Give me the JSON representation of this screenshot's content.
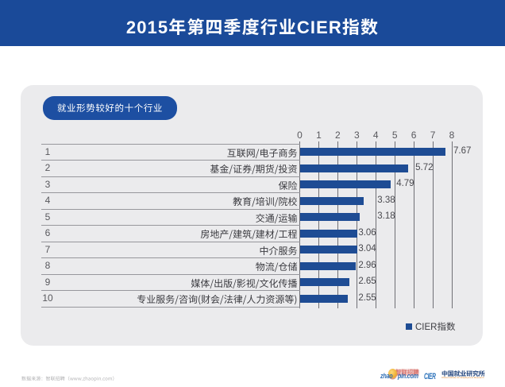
{
  "banner": {
    "title": "2015年第四季度行业CIER指数"
  },
  "panel": {
    "tag_label": "就业形势较好的十个行业"
  },
  "chart_data": {
    "type": "bar",
    "orientation": "horizontal",
    "title": "2015年第四季度行业CIER指数",
    "subtitle": "就业形势较好的十个行业",
    "ranks": [
      "1",
      "2",
      "3",
      "4",
      "5",
      "6",
      "7",
      "8",
      "9",
      "10"
    ],
    "categories": [
      "互联网/电子商务",
      "基金/证券/期货/投资",
      "保险",
      "教育/培训/院校",
      "交通/运输",
      "房地产/建筑/建材/工程",
      "中介服务",
      "物流/仓储",
      "媒体/出版/影视/文化传播",
      "专业服务/咨询(财会/法律/人力资源等)"
    ],
    "values": [
      7.67,
      5.72,
      4.79,
      3.38,
      3.18,
      3.06,
      3.04,
      2.96,
      2.65,
      2.55
    ],
    "series": [
      {
        "name": "CIER指数",
        "values": [
          7.67,
          5.72,
          4.79,
          3.38,
          3.18,
          3.06,
          3.04,
          2.96,
          2.65,
          2.55
        ]
      }
    ],
    "xlabel": "",
    "ylabel": "",
    "xlim": [
      0,
      8
    ],
    "x_ticks": [
      0,
      1,
      2,
      3,
      4,
      5,
      6,
      7,
      8
    ],
    "grid": true,
    "legend_position": "bottom-right",
    "legend_label": "CIER指数",
    "bar_color": "#1e4c94"
  },
  "legend": {
    "label": "CIER指数"
  },
  "footer": {
    "source_note": "数据来源：智联招聘（www.zhaopin.com）",
    "zhaopin_logo": {
      "cn": "智联招聘",
      "en_prefix": "zhao",
      "en_suffix": "pin.com"
    },
    "cier_logo": {
      "abbr": "CIER",
      "cn": "中国就业研究所",
      "en": "China Institute for Employment Research"
    }
  },
  "colors": {
    "banner_blue": "#1a4a99",
    "tag_blue": "#1d4fa2",
    "bar_blue": "#1e4c94",
    "card_gray": "#ebebed",
    "grid_line": "#6f6f75",
    "row_line": "#97979c",
    "text_dark": "#3b3b40",
    "text_gray": "#58585d",
    "footer_gray": "#b5b5b5",
    "zhaopin_blue": "#2f6fb5",
    "zhaopin_red": "#cd3d35",
    "zhaopin_yellow": "#f5b63a",
    "cier_blue": "#2a71ba",
    "cier_navy": "#25477e",
    "cier_orange": "#e2862d"
  }
}
